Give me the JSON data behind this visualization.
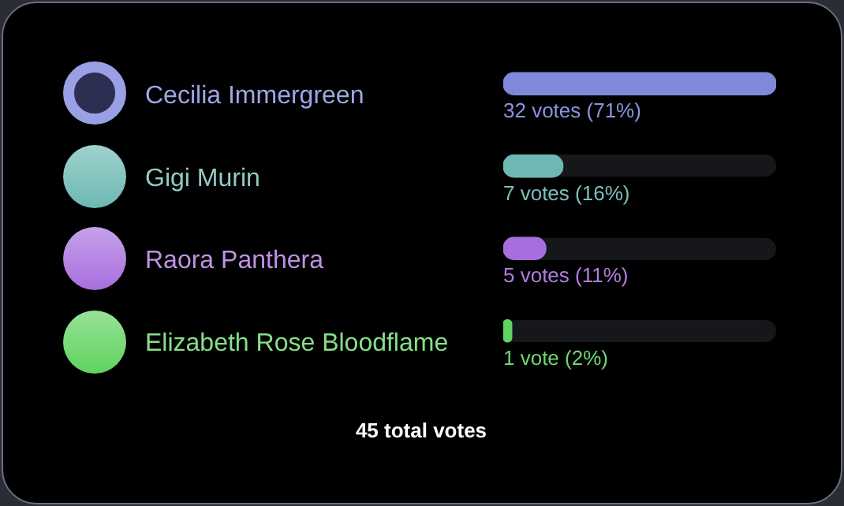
{
  "chart_data": {
    "type": "bar",
    "orientation": "horizontal",
    "categories": [
      "Cecilia Immergreen",
      "Gigi Murin",
      "Raora Panthera",
      "Elizabeth Rose Bloodflame"
    ],
    "values": [
      32,
      7,
      5,
      1
    ],
    "colors": [
      "#8088dc",
      "#6db8b2",
      "#a86ede",
      "#5fd35f"
    ],
    "value_labels": [
      "32 votes (71%)",
      "7 votes (16%)",
      "5 votes (11%)",
      "1 vote (2%)"
    ],
    "xlim": [
      0,
      32
    ],
    "tick_labels": "y",
    "legend": false,
    "annotations": [
      "45 total votes"
    ]
  }
}
